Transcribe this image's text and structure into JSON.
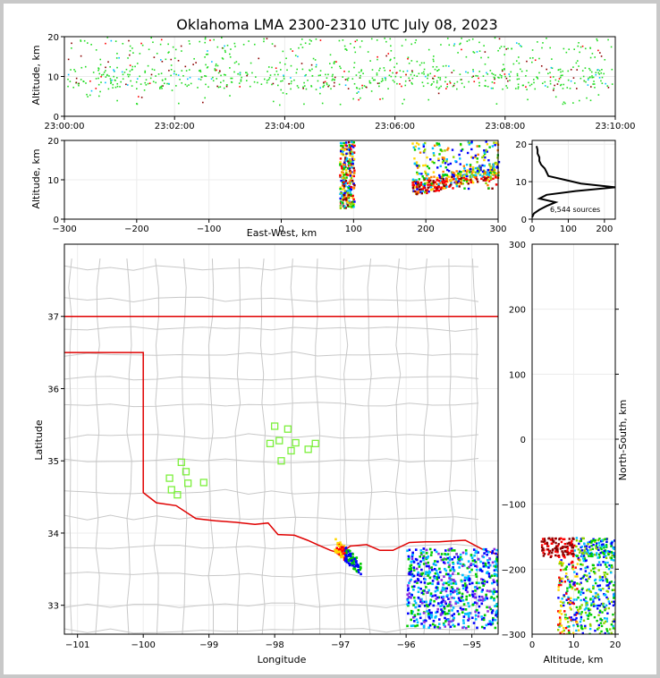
{
  "title": "Oklahoma LMA 2300-2310 UTC July 08, 2023",
  "chart_data": [
    {
      "id": "time-height",
      "type": "scatter",
      "ylabel": "Altitude, km",
      "xlim": [
        "23:00:00",
        "23:10:00"
      ],
      "ylim": [
        0,
        20
      ],
      "xticks": [
        "23:00:00",
        "23:02:00",
        "23:04:00",
        "23:06:00",
        "23:08:00",
        "23:10:00"
      ],
      "yticks": [
        0,
        10,
        20
      ],
      "altitude_band_km": [
        3,
        20
      ]
    },
    {
      "id": "east-west",
      "type": "scatter",
      "xlabel": "East-West, km",
      "ylabel": "Altitude, km",
      "xlim": [
        -300,
        300
      ],
      "ylim": [
        0,
        20
      ],
      "xticks": [
        -300,
        -200,
        -100,
        0,
        100,
        200,
        300
      ],
      "yticks": [
        0,
        10,
        20
      ],
      "clusters_km": [
        {
          "x": [
            80,
            100
          ],
          "z": [
            3,
            20
          ]
        },
        {
          "x": [
            180,
            300
          ],
          "z": [
            6,
            20
          ]
        }
      ]
    },
    {
      "id": "altitude-histogram",
      "type": "line",
      "xlim": [
        0,
        230
      ],
      "ylim": [
        0,
        21
      ],
      "xticks": [
        0,
        100,
        200
      ],
      "yticks": [
        0,
        10,
        20
      ],
      "annotation": "6,544 sources",
      "profile": {
        "z": [
          0.5,
          1.5,
          2.5,
          3.5,
          4.5,
          5.5,
          6.5,
          7.5,
          8.5,
          9.5,
          10.5,
          11.5,
          12.5,
          13.5,
          14.5,
          15.5,
          16.5,
          17.5,
          18.5,
          19.5
        ],
        "count": [
          0,
          5,
          20,
          40,
          65,
          20,
          40,
          120,
          230,
          135,
          90,
          45,
          40,
          35,
          25,
          20,
          20,
          15,
          15,
          12
        ]
      }
    },
    {
      "id": "plan-view",
      "type": "scatter",
      "xlabel": "Longitude",
      "ylabel": "Latitude",
      "xlim": [
        -101.2,
        -94.6
      ],
      "ylim": [
        32.6,
        38.0
      ],
      "xticks": [
        -101,
        -100,
        -99,
        -98,
        -97,
        -96,
        -95
      ],
      "yticks": [
        33,
        34,
        35,
        36,
        37
      ],
      "stations": [
        [
          -98.0,
          35.48
        ],
        [
          -97.8,
          35.44
        ],
        [
          -98.07,
          35.24
        ],
        [
          -97.93,
          35.28
        ],
        [
          -97.68,
          35.25
        ],
        [
          -97.38,
          35.24
        ],
        [
          -97.49,
          35.16
        ],
        [
          -97.75,
          35.14
        ],
        [
          -97.9,
          35.0
        ],
        [
          -99.42,
          34.98
        ],
        [
          -99.35,
          34.85
        ],
        [
          -99.6,
          34.76
        ],
        [
          -99.32,
          34.69
        ],
        [
          -99.08,
          34.7
        ],
        [
          -99.57,
          34.6
        ],
        [
          -99.48,
          34.53
        ]
      ],
      "clusters_deg": [
        {
          "lon": [
            -97.1,
            -96.7
          ],
          "lat": [
            33.55,
            33.95
          ]
        },
        {
          "lon": [
            -96.0,
            -94.6
          ],
          "lat": [
            32.7,
            33.8
          ]
        }
      ],
      "state_border_color": "#e00000"
    },
    {
      "id": "north-south",
      "type": "scatter",
      "xlabel": "Altitude, km",
      "ylabel": "North-South, km",
      "xlim": [
        0,
        20
      ],
      "ylim": [
        -300,
        300
      ],
      "xticks": [
        0,
        10,
        20
      ],
      "yticks": [
        -300,
        -200,
        -100,
        0,
        100,
        200,
        300
      ],
      "clusters_km": [
        {
          "z": [
            3,
            20
          ],
          "y": [
            -180,
            -150
          ]
        },
        {
          "z": [
            5,
            20
          ],
          "y": [
            -300,
            -180
          ]
        }
      ]
    }
  ],
  "colors": {
    "early": "#0000ff",
    "mid": "#00cc00",
    "late": "#ff0000",
    "border": "#e00000",
    "county": "#c8c8c8",
    "station": "#7cf03c"
  }
}
